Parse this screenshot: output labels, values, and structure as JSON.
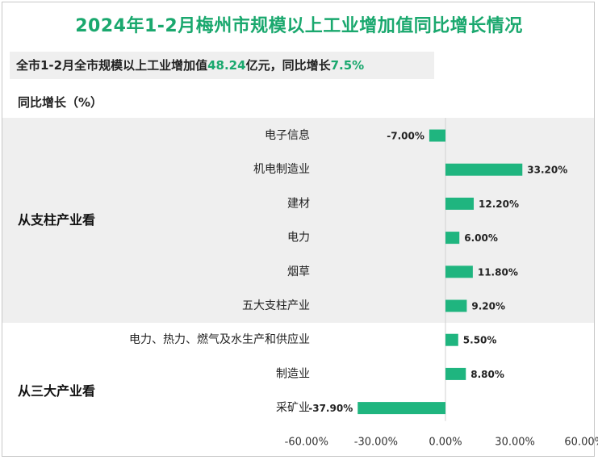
{
  "title": "2024年1-2月梅州市规模以上工业增加值同比增长情况",
  "summary": {
    "part1": "全市1-2月全市规模以上工业增加值",
    "value": "48.24",
    "part2": "亿元，同比增长",
    "growth": "7.5%"
  },
  "unit_label": "同比增长（%）",
  "chart_data": {
    "type": "bar",
    "orientation": "horizontal",
    "groups": [
      {
        "name": "从支柱产业看",
        "categories": [
          "电子信息",
          "机电制造业",
          "建材",
          "电力",
          "烟草",
          "五大支柱产业"
        ],
        "values": [
          -7.0,
          33.2,
          12.2,
          6.0,
          11.8,
          9.2
        ],
        "labels": [
          "-7.00%",
          "33.20%",
          "12.20%",
          "6.00%",
          "11.80%",
          "9.20%"
        ]
      },
      {
        "name": "从三大产业看",
        "categories": [
          "电力、热力、燃气及水生产和供应业",
          "制造业",
          "采矿业"
        ],
        "values": [
          5.5,
          8.8,
          -37.9
        ],
        "labels": [
          "5.50%",
          "8.80%",
          "-37.90%"
        ]
      }
    ],
    "xlim": [
      -60,
      60
    ],
    "xticks": [
      -60,
      -30,
      0,
      30,
      60
    ],
    "xtick_labels": [
      "-60.00%",
      "-30.00%",
      "0.00%",
      "30.00%",
      "60.00%"
    ],
    "bar_color": "#1fb57f",
    "band_color": "#efefef"
  }
}
